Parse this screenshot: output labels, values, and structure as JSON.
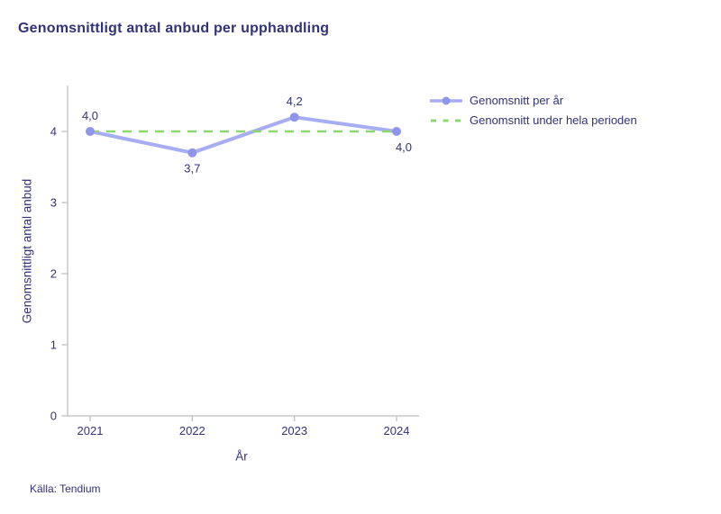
{
  "title": "Genomsnittligt antal anbud per upphandling",
  "source": "Källa: Tendium",
  "colors": {
    "text": "#32327d",
    "line": "#a7adf2",
    "marker": "#8f96e9",
    "dashed": "#8dd86e",
    "axis": "#bfbfbf"
  },
  "legend": [
    {
      "label": "Genomsnitt per år",
      "swatch": "line-with-marker",
      "color": "#a7adf2"
    },
    {
      "label": "Genomsnitt under hela perioden",
      "swatch": "dashed-line",
      "color": "#8dd86e"
    }
  ],
  "chart_data": {
    "type": "line",
    "title": "Genomsnittligt antal anbud per upphandling",
    "xlabel": "År",
    "ylabel": "Genomsnittligt antal anbud",
    "categories": [
      "2021",
      "2022",
      "2023",
      "2024"
    ],
    "series": [
      {
        "name": "Genomsnitt per år",
        "values": [
          4.0,
          3.7,
          4.2,
          4.0
        ],
        "point_labels": [
          "4,0",
          "3,7",
          "4,2",
          "4,0"
        ],
        "label_positions": [
          "above",
          "below",
          "above",
          "below"
        ]
      },
      {
        "name": "Genomsnitt under hela perioden",
        "values": [
          4.0,
          4.0,
          4.0,
          4.0
        ],
        "style": "dashed"
      }
    ],
    "ylim": [
      0,
      4.6
    ],
    "yticks": [
      0,
      1,
      2,
      3,
      4
    ],
    "grid": false,
    "legend_position": "top-right"
  }
}
